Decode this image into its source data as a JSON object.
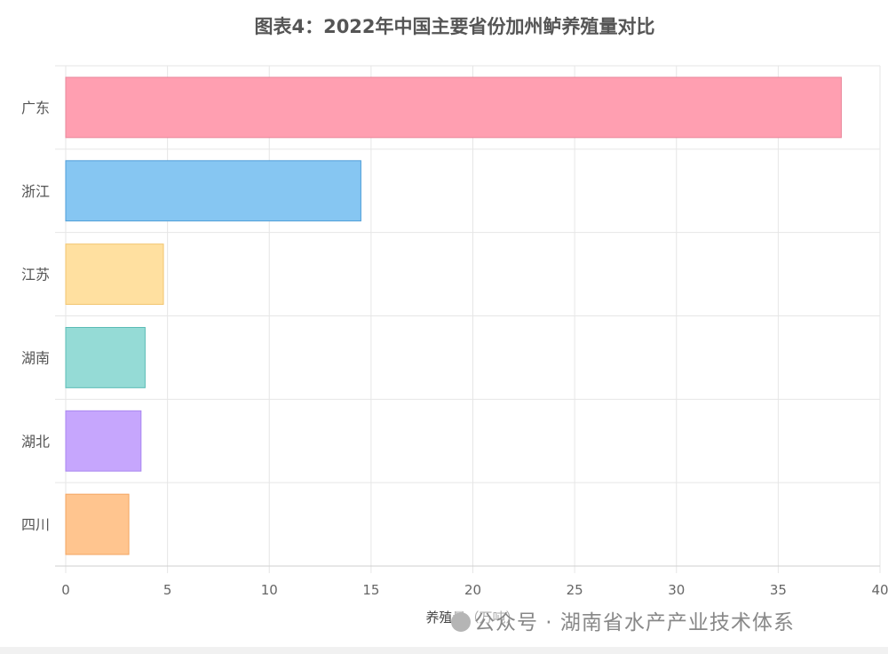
{
  "chart_data": {
    "type": "bar",
    "orientation": "horizontal",
    "title": "图表4：2022年中国主要省份加州鲈养殖量对比",
    "categories": [
      "广东",
      "浙江",
      "江苏",
      "湖南",
      "湖北",
      "四川"
    ],
    "values": [
      38.1,
      14.5,
      4.8,
      3.9,
      3.7,
      3.1
    ],
    "xlabel": "养殖量（万吨）",
    "ylabel": "",
    "xlim": [
      0,
      40
    ],
    "xticks": [
      0,
      5,
      10,
      15,
      20,
      25,
      30,
      35,
      40
    ],
    "grid": true,
    "legend": "none",
    "colors": [
      "#ff9fb1",
      "#86c6f2",
      "#ffe0a0",
      "#95dbd6",
      "#c6a6fd",
      "#ffc58f"
    ],
    "borders": [
      "#e9879b",
      "#4f9ed8",
      "#f2c56f",
      "#5bbcb6",
      "#a987f0",
      "#f3a560"
    ]
  },
  "watermark": {
    "text": "公众号 · 湖南省水产产业技术体系",
    "icon": "wechat-icon"
  }
}
